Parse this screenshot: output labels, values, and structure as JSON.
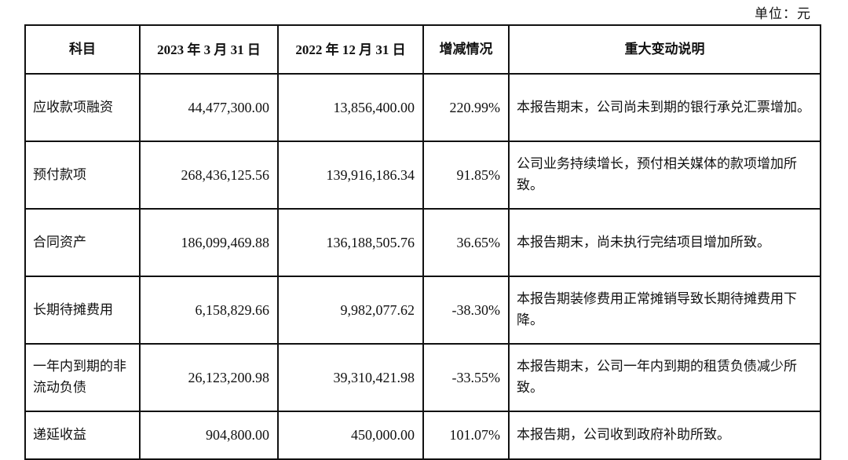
{
  "unit_label": "单位：元",
  "table": {
    "headers": {
      "item": "科目",
      "date_2023": "2023 年 3 月 31 日",
      "date_2022": "2022 年 12 月 31 日",
      "change": "增减情况",
      "explanation": "重大变动说明"
    },
    "rows": [
      {
        "item": "应收款项融资",
        "v2023": "44,477,300.00",
        "v2022": "13,856,400.00",
        "change": "220.99%",
        "explanation": "本报告期末，公司尚未到期的银行承兑汇票增加。"
      },
      {
        "item": "预付款项",
        "v2023": "268,436,125.56",
        "v2022": "139,916,186.34",
        "change": "91.85%",
        "explanation": "公司业务持续增长，预付相关媒体的款项增加所致。"
      },
      {
        "item": "合同资产",
        "v2023": "186,099,469.88",
        "v2022": "136,188,505.76",
        "change": "36.65%",
        "explanation": "本报告期末，尚未执行完结项目增加所致。"
      },
      {
        "item": "长期待摊费用",
        "v2023": "6,158,829.66",
        "v2022": "9,982,077.62",
        "change": "-38.30%",
        "explanation": "本报告期装修费用正常摊销导致长期待摊费用下降。"
      },
      {
        "item": "一年内到期的非流动负债",
        "v2023": "26,123,200.98",
        "v2022": "39,310,421.98",
        "change": "-33.55%",
        "explanation": "本报告期末，公司一年内到期的租赁负债减少所致。"
      },
      {
        "item": "递延收益",
        "v2023": "904,800.00",
        "v2022": "450,000.00",
        "change": "101.07%",
        "explanation": "本报告期，公司收到政府补助所致。"
      }
    ]
  }
}
